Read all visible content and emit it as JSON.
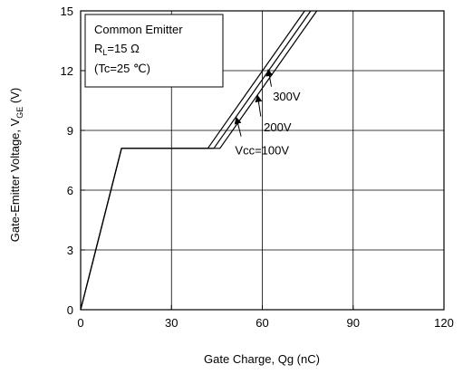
{
  "chart_data": {
    "type": "line",
    "xlabel": "Gate Charge, Qg (nC)",
    "ylabel_main": "Gate-Emitter Voltage, V",
    "ylabel_sub": "GE",
    "ylabel_unit": " (V)",
    "xlim": [
      0,
      120
    ],
    "ylim": [
      0,
      15
    ],
    "xticks": [
      0,
      30,
      60,
      90,
      120
    ],
    "yticks": [
      0,
      3,
      6,
      9,
      12,
      15
    ],
    "grid": true,
    "legend_box": {
      "line1": "Common Emitter",
      "line2_main": "R",
      "line2_sub": "L",
      "line2_rest": "=15 Ω",
      "line3": "(Tc=25 ℃)"
    },
    "series": [
      {
        "name": "Vcc=100V",
        "x": [
          0,
          13.5,
          42.0,
          74.0
        ],
        "y": [
          0,
          8.1,
          8.1,
          15
        ]
      },
      {
        "name": "200V",
        "x": [
          0,
          13.5,
          44.0,
          76.0
        ],
        "y": [
          0,
          8.1,
          8.1,
          15
        ]
      },
      {
        "name": "300V",
        "x": [
          0,
          13.5,
          46.0,
          78.0
        ],
        "y": [
          0,
          8.1,
          8.1,
          15
        ]
      }
    ],
    "annotations": [
      {
        "label": "300V",
        "text_x": 63.5,
        "text_y": 10.5,
        "arrow_from": [
          63.0,
          11.2
        ],
        "arrow_to": [
          62.0,
          12.0
        ]
      },
      {
        "label": "200V",
        "text_x": 60.5,
        "text_y": 8.95,
        "arrow_from": [
          59.5,
          9.7
        ],
        "arrow_to": [
          58.5,
          10.7
        ]
      },
      {
        "label": "Vcc=100V",
        "text_x": 51.0,
        "text_y": 7.8,
        "arrow_from": [
          53.0,
          8.7
        ],
        "arrow_to": [
          51.5,
          9.6
        ]
      }
    ]
  }
}
